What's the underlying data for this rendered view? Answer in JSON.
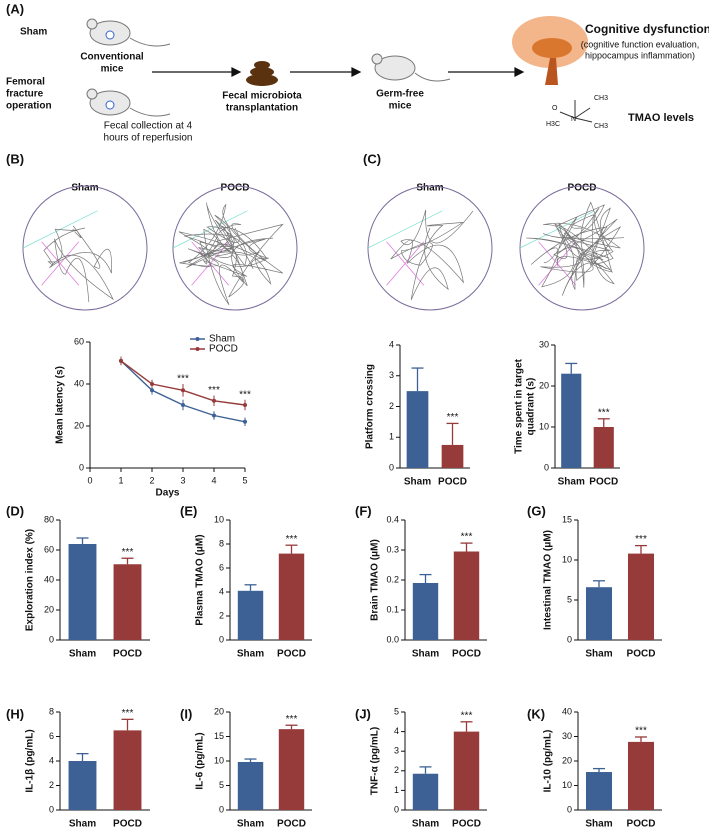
{
  "schematic": {
    "label": "(A)",
    "sham": "Sham",
    "conventional": [
      "Conventional",
      "mice"
    ],
    "femoral": [
      "Femoral",
      "fracture",
      "operation"
    ],
    "collection": [
      "Fecal collection at 4",
      "hours of reperfusion"
    ],
    "fmt": [
      "Fecal microbiota",
      "transplantation"
    ],
    "germ_free": [
      "Germ-free",
      "mice"
    ],
    "cognitive": "Cognitive dysfunction",
    "cognitive_note": [
      "(cognitive function evaluation,",
      "hippocampus inflammation)"
    ],
    "tmao": "TMAO levels",
    "chem": [
      "CH3",
      "O",
      "N",
      "H3C",
      "CH3"
    ]
  },
  "tracks": [
    {
      "label": "Sham"
    },
    {
      "label": "POCD"
    },
    {
      "label": "Sham"
    },
    {
      "label": "POCD"
    }
  ],
  "chart_data": [
    {
      "type": "line",
      "panel_label": "(B)",
      "xlabel": "Days",
      "ylabel": [
        "Mean latency (s)"
      ],
      "x": [
        1,
        2,
        3,
        4,
        5
      ],
      "xlim": [
        0,
        5
      ],
      "xticks": [
        0,
        1,
        2,
        3,
        4,
        5
      ],
      "ylim": [
        0,
        60
      ],
      "yticks": [
        0,
        20,
        40,
        60
      ],
      "series": [
        {
          "name": "Sham",
          "color": "#3d6194",
          "values": [
            51,
            37,
            30,
            25,
            22
          ],
          "errors": [
            2,
            2,
            2.5,
            2,
            2
          ]
        },
        {
          "name": "POCD",
          "color": "#963a3a",
          "values": [
            51,
            40,
            37,
            32,
            30
          ],
          "errors": [
            2,
            2,
            3,
            2.5,
            2.5
          ]
        }
      ],
      "annotations": [
        {
          "x": 3,
          "text": "***"
        },
        {
          "x": 4,
          "text": "***"
        },
        {
          "x": 5,
          "text": "***"
        }
      ]
    },
    {
      "type": "bar",
      "ylabel": [
        "Platform crossing"
      ],
      "categories": [
        "Sham",
        "POCD"
      ],
      "values": [
        2.5,
        0.75
      ],
      "errors": [
        0.75,
        0.7
      ],
      "colors": [
        "#3d6194",
        "#963a3a"
      ],
      "ylim": [
        0,
        4
      ],
      "yticks": [
        0,
        1,
        2,
        3,
        4
      ],
      "annotation": "***",
      "panel_label": "(C)"
    },
    {
      "type": "bar",
      "ylabel": [
        "Time spent in target",
        "quadrant (s)"
      ],
      "categories": [
        "Sham",
        "POCD"
      ],
      "values": [
        23,
        10
      ],
      "errors": [
        2.5,
        2
      ],
      "colors": [
        "#3d6194",
        "#963a3a"
      ],
      "ylim": [
        0,
        30
      ],
      "yticks": [
        0,
        10,
        20,
        30
      ],
      "annotation": "***"
    },
    {
      "type": "bar",
      "panel_label": "(D)",
      "ylabel": [
        "Exploration index (%)"
      ],
      "categories": [
        "Sham",
        "POCD"
      ],
      "values": [
        64,
        50.5
      ],
      "errors": [
        4,
        4
      ],
      "colors": [
        "#3d6194",
        "#963a3a"
      ],
      "ylim": [
        0,
        80
      ],
      "yticks": [
        0,
        20,
        40,
        60,
        80
      ],
      "annotation": "***"
    },
    {
      "type": "bar",
      "panel_label": "(E)",
      "ylabel": [
        "Plasma TMAO (μM)"
      ],
      "categories": [
        "Sham",
        "POCD"
      ],
      "values": [
        4.1,
        7.2
      ],
      "errors": [
        0.5,
        0.7
      ],
      "colors": [
        "#3d6194",
        "#963a3a"
      ],
      "ylim": [
        0,
        10
      ],
      "yticks": [
        0,
        2,
        4,
        6,
        8,
        10
      ],
      "annotation": "***"
    },
    {
      "type": "bar",
      "panel_label": "(F)",
      "ylabel": [
        "Brain TMAO (μM)"
      ],
      "categories": [
        "Sham",
        "POCD"
      ],
      "values": [
        0.19,
        0.295
      ],
      "errors": [
        0.028,
        0.028
      ],
      "colors": [
        "#3d6194",
        "#963a3a"
      ],
      "ylim": [
        0,
        0.4
      ],
      "yticks": [
        {
          "value": 0,
          "label": "0.0"
        },
        0.1,
        0.2,
        0.3,
        0.4
      ],
      "annotation": "***"
    },
    {
      "type": "bar",
      "panel_label": "(G)",
      "ylabel": [
        "Intestinal TMAO (μM)"
      ],
      "categories": [
        "Sham",
        "POCD"
      ],
      "values": [
        6.6,
        10.8
      ],
      "errors": [
        0.8,
        1
      ],
      "colors": [
        "#3d6194",
        "#963a3a"
      ],
      "ylim": [
        0,
        15
      ],
      "yticks": [
        0,
        5,
        10,
        15
      ],
      "annotation": "***"
    },
    {
      "type": "bar",
      "panel_label": "(H)",
      "ylabel": [
        "IL-1β (pg/mL)"
      ],
      "categories": [
        "Sham",
        "POCD"
      ],
      "values": [
        4.0,
        6.5
      ],
      "errors": [
        0.6,
        0.9
      ],
      "colors": [
        "#3d6194",
        "#963a3a"
      ],
      "ylim": [
        0,
        8
      ],
      "yticks": [
        0,
        2,
        4,
        6,
        8
      ],
      "annotation": "***"
    },
    {
      "type": "bar",
      "panel_label": "(I)",
      "ylabel": [
        "IL-6 (pg/mL)"
      ],
      "categories": [
        "Sham",
        "POCD"
      ],
      "values": [
        9.8,
        16.5
      ],
      "errors": [
        0.6,
        0.8
      ],
      "colors": [
        "#3d6194",
        "#963a3a"
      ],
      "ylim": [
        0,
        20
      ],
      "yticks": [
        0,
        5,
        10,
        15,
        20
      ],
      "annotation": "***"
    },
    {
      "type": "bar",
      "panel_label": "(J)",
      "ylabel": [
        "TNF-α (pg/mL)"
      ],
      "categories": [
        "Sham",
        "POCD"
      ],
      "values": [
        1.85,
        4.0
      ],
      "errors": [
        0.35,
        0.5
      ],
      "colors": [
        "#3d6194",
        "#963a3a"
      ],
      "ylim": [
        0,
        5
      ],
      "yticks": [
        0,
        1,
        2,
        3,
        4,
        5
      ],
      "annotation": "***"
    },
    {
      "type": "bar",
      "panel_label": "(K)",
      "ylabel": [
        "IL-10 (pg/mL)"
      ],
      "categories": [
        "Sham",
        "POCD"
      ],
      "values": [
        15.5,
        27.8
      ],
      "errors": [
        1.4,
        2
      ],
      "colors": [
        "#3d6194",
        "#963a3a"
      ],
      "ylim": [
        0,
        40
      ],
      "yticks": [
        0,
        10,
        20,
        30,
        40
      ],
      "annotation": "***"
    }
  ]
}
